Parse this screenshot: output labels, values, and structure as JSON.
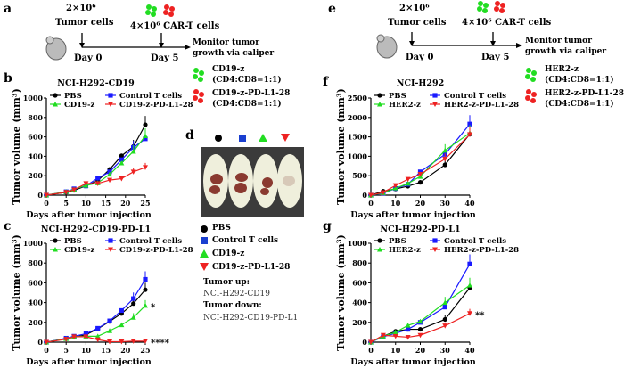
{
  "panels": {
    "a": "a",
    "b": "b",
    "c": "c",
    "d": "d",
    "e": "e",
    "f": "f",
    "g": "g"
  },
  "schematic_left": {
    "tumor_dose": "2×10⁶",
    "tumor_cells": "Tumor cells",
    "cart_dose": "4×10⁶ CAR-T cells",
    "day0": "Day 0",
    "day5": "Day 5",
    "monitor_1": "Monitor tumor",
    "monitor_2": "growth via caliper",
    "legend": [
      {
        "name": "CD19-z",
        "sub": "(CD4:CD8=1:1)",
        "color": "#22dd22"
      },
      {
        "name": "CD19-z-PD-L1-28",
        "sub": "(CD4:CD8=1:1)",
        "color": "#ee2222"
      }
    ]
  },
  "schematic_right": {
    "tumor_dose": "2×10⁶",
    "tumor_cells": "Tumor cells",
    "cart_dose": "4×10⁶ CAR-T cells",
    "day0": "Day 0",
    "day5": "Day 5",
    "monitor_1": "Monitor tumor",
    "monitor_2": "growth via caliper",
    "legend": [
      {
        "name": "HER2-z",
        "sub": "(CD4:CD8=1:1)",
        "color": "#22dd22"
      },
      {
        "name": "HER2-z-PD-L1-28",
        "sub": "(CD4:CD8=1:1)",
        "color": "#ee2222"
      }
    ]
  },
  "photo_panel": {
    "legend": [
      "PBS",
      "Control T cells",
      "CD19-z",
      "CD19-z-PD-L1-28"
    ],
    "tumor_up_label": "Tumor up:",
    "tumor_up": "NCI-H292-CD19",
    "tumor_down_label": "Tumor down:",
    "tumor_down": "NCI-H292-CD19-PD-L1"
  },
  "colors": {
    "PBS": "#000000",
    "Control": "#1a1aff",
    "z": "#22dd22",
    "PDL1": "#ee2222"
  },
  "chart_data": [
    {
      "type": "line",
      "title": "NCI-H292-CD19",
      "xlabel": "Days after tumor injection",
      "ylabel": "Tumor volume (mm³)",
      "xlim": [
        0,
        25
      ],
      "ylim": [
        0,
        1000
      ],
      "xticks": [
        0,
        5,
        10,
        15,
        20,
        25
      ],
      "yticks": [
        0,
        200,
        400,
        600,
        800,
        1000
      ],
      "x": [
        0,
        5,
        7,
        10,
        13,
        16,
        19,
        22,
        25
      ],
      "legend": "top-left",
      "annotation": "",
      "series": [
        {
          "name": "PBS",
          "marker": "circle",
          "values": [
            0,
            30,
            50,
            95,
            150,
            265,
            405,
            500,
            725
          ]
        },
        {
          "name": "Control T cells",
          "marker": "square",
          "values": [
            0,
            35,
            65,
            95,
            175,
            240,
            365,
            490,
            580
          ]
        },
        {
          "name": "CD19-z",
          "marker": "triangle-up",
          "values": [
            0,
            35,
            60,
            100,
            125,
            215,
            330,
            450,
            610
          ]
        },
        {
          "name": "CD19-z-PD-L1-28",
          "marker": "triangle-down",
          "values": [
            0,
            30,
            55,
            120,
            120,
            155,
            170,
            240,
            285
          ]
        }
      ]
    },
    {
      "type": "line",
      "title": "NCI-H292-CD19-PD-L1",
      "xlabel": "Days after tumor injection",
      "ylabel": "Tumor volume (mm³)",
      "xlim": [
        0,
        25
      ],
      "ylim": [
        0,
        1000
      ],
      "xticks": [
        0,
        5,
        10,
        15,
        20,
        25
      ],
      "yticks": [
        0,
        200,
        400,
        600,
        800,
        1000
      ],
      "x": [
        0,
        5,
        7,
        10,
        13,
        16,
        19,
        22,
        25
      ],
      "legend": "top-left",
      "annotations": [
        {
          "text": "*",
          "series": "CD19-z"
        },
        {
          "text": "****",
          "series": "CD19-z-PD-L1-28"
        }
      ],
      "series": [
        {
          "name": "PBS",
          "marker": "circle",
          "values": [
            0,
            35,
            50,
            75,
            135,
            210,
            290,
            390,
            530
          ]
        },
        {
          "name": "Control T cells",
          "marker": "square",
          "values": [
            0,
            40,
            60,
            85,
            140,
            215,
            320,
            440,
            635
          ]
        },
        {
          "name": "CD19-z",
          "marker": "triangle-up",
          "values": [
            0,
            35,
            55,
            60,
            60,
            115,
            175,
            250,
            370
          ]
        },
        {
          "name": "CD19-z-PD-L1-28",
          "marker": "triangle-down",
          "values": [
            0,
            30,
            55,
            55,
            25,
            5,
            5,
            10,
            10
          ]
        }
      ]
    },
    {
      "type": "line",
      "title": "NCI-H292",
      "xlabel": "Days after tumor injection",
      "ylabel": "Tumor volume (mm³)",
      "xlim": [
        0,
        40
      ],
      "ylim": [
        0,
        2500
      ],
      "xticks": [
        0,
        10,
        20,
        30,
        40
      ],
      "yticks": [
        0,
        500,
        1000,
        1500,
        2000,
        2500
      ],
      "x": [
        0,
        5,
        10,
        15,
        20,
        30,
        40
      ],
      "legend": "top-left",
      "series": [
        {
          "name": "PBS",
          "marker": "circle",
          "values": [
            0,
            100,
            160,
            230,
            330,
            780,
            1570
          ]
        },
        {
          "name": "Control T cells",
          "marker": "square",
          "values": [
            0,
            50,
            170,
            280,
            600,
            1050,
            1830
          ]
        },
        {
          "name": "HER2-z",
          "marker": "triangle-up",
          "values": [
            0,
            60,
            180,
            300,
            480,
            1150,
            1600
          ]
        },
        {
          "name": "HER2-z-PD-L1-28",
          "marker": "triangle-down",
          "values": [
            0,
            70,
            250,
            410,
            540,
            930,
            1560
          ]
        }
      ]
    },
    {
      "type": "line",
      "title": "NCI-H292-PD-L1",
      "xlabel": "Days after tumor injection",
      "ylabel": "Tumor volume (mm³)",
      "xlim": [
        0,
        40
      ],
      "ylim": [
        0,
        1000
      ],
      "xticks": [
        0,
        10,
        20,
        30,
        40
      ],
      "yticks": [
        0,
        200,
        400,
        600,
        800,
        1000
      ],
      "x": [
        0,
        5,
        10,
        15,
        20,
        30,
        40
      ],
      "legend": "top-left",
      "annotations": [
        {
          "text": "**",
          "series": "HER2-z-PD-L1-28"
        }
      ],
      "series": [
        {
          "name": "PBS",
          "marker": "circle",
          "values": [
            0,
            60,
            110,
            130,
            130,
            230,
            550
          ]
        },
        {
          "name": "Control T cells",
          "marker": "square",
          "values": [
            0,
            55,
            90,
            130,
            200,
            355,
            790
          ]
        },
        {
          "name": "HER2-z",
          "marker": "triangle-up",
          "values": [
            0,
            60,
            100,
            170,
            210,
            400,
            575
          ]
        },
        {
          "name": "HER2-z-PD-L1-28",
          "marker": "triangle-down",
          "values": [
            0,
            70,
            60,
            50,
            70,
            165,
            290
          ]
        }
      ]
    }
  ]
}
